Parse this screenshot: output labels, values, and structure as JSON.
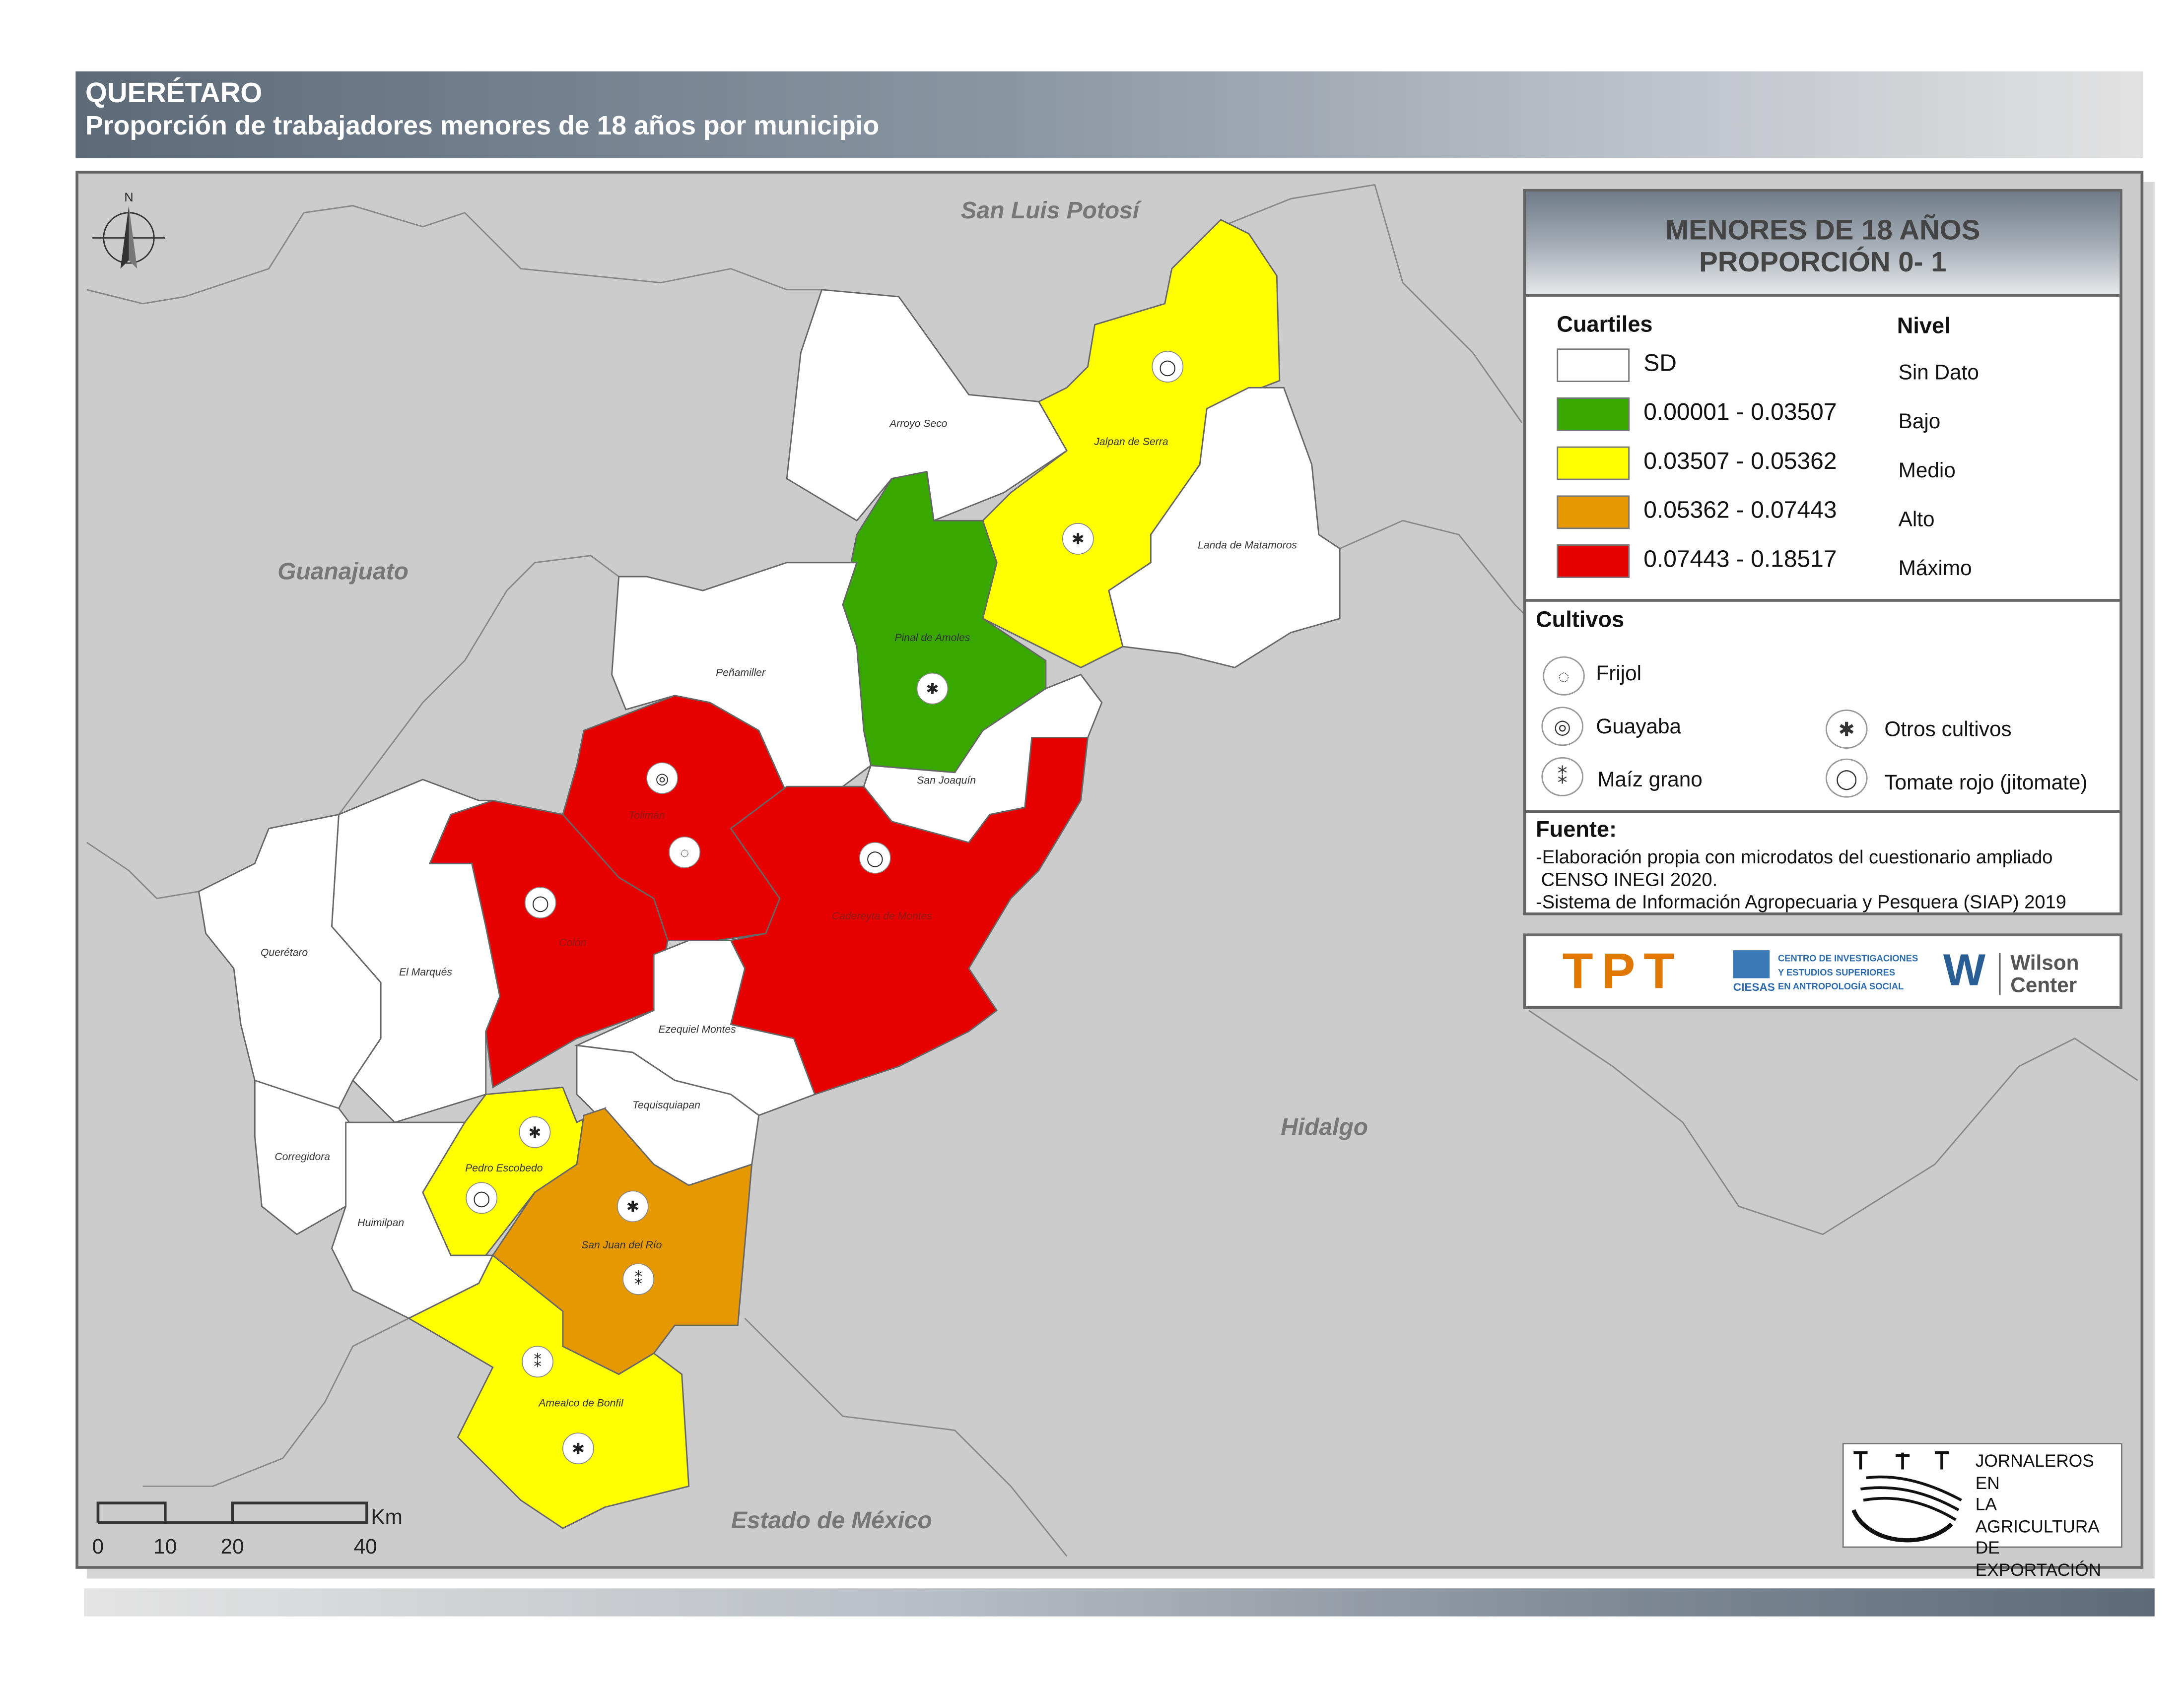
{
  "header": {
    "state": "QUERÉTARO",
    "subtitle": "Proporción de trabajadores menores de 18 años por municipio"
  },
  "colors": {
    "sin_dato": "#ffffff",
    "bajo": "#38a800",
    "medio": "#ffff00",
    "alto": "#e69800",
    "maximo": "#e60000",
    "background": "#cccccc"
  },
  "neighbors": [
    "San Luis Potosí",
    "Guanajuato",
    "Hidalgo",
    "Estado de México"
  ],
  "municipalities": [
    {
      "name": "Arroyo Seco",
      "level": "Sin Dato",
      "crops": []
    },
    {
      "name": "Jalpan de Serra",
      "level": "Medio",
      "crops": [
        "Tomate rojo (jitomate)",
        "Otros cultivos"
      ]
    },
    {
      "name": "Landa de Matamoros",
      "level": "Sin Dato",
      "crops": []
    },
    {
      "name": "Pinal de Amoles",
      "level": "Bajo",
      "crops": [
        "Otros cultivos"
      ]
    },
    {
      "name": "Peñamiller",
      "level": "Sin Dato",
      "crops": []
    },
    {
      "name": "San Joaquín",
      "level": "Sin Dato",
      "crops": []
    },
    {
      "name": "Tolimán",
      "level": "Máximo",
      "crops": [
        "Guayaba",
        "Frijol"
      ]
    },
    {
      "name": "Colón",
      "level": "Máximo",
      "crops": [
        "Tomate rojo (jitomate)"
      ]
    },
    {
      "name": "Cadereyta de Montes",
      "level": "Máximo",
      "crops": [
        "Tomate rojo (jitomate)"
      ]
    },
    {
      "name": "Ezequiel Montes",
      "level": "Sin Dato",
      "crops": []
    },
    {
      "name": "Querétaro",
      "level": "Sin Dato",
      "crops": []
    },
    {
      "name": "El Marqués",
      "level": "Sin Dato",
      "crops": []
    },
    {
      "name": "Tequisquiapan",
      "level": "Sin Dato",
      "crops": []
    },
    {
      "name": "Corregidora",
      "level": "Sin Dato",
      "crops": []
    },
    {
      "name": "Huimilpan",
      "level": "Sin Dato",
      "crops": []
    },
    {
      "name": "Pedro Escobedo",
      "level": "Medio",
      "crops": [
        "Otros cultivos",
        "Tomate rojo (jitomate)"
      ]
    },
    {
      "name": "San Juan del Río",
      "level": "Alto",
      "crops": [
        "Otros cultivos",
        "Maíz grano"
      ]
    },
    {
      "name": "Amealco de Bonfil",
      "level": "Medio",
      "crops": [
        "Maíz grano",
        "Otros cultivos"
      ]
    }
  ],
  "legend": {
    "title1": "MENORES DE 18 AÑOS",
    "title2": "PROPORCIÓN 0- 1",
    "cuartiles_label": "Cuartiles",
    "nivel_label": "Nivel",
    "classes": [
      {
        "range": "SD",
        "level": "Sin Dato",
        "color": "#ffffff"
      },
      {
        "range": "0.00001 - 0.03507",
        "level": "Bajo",
        "color": "#38a800"
      },
      {
        "range": "0.03507 - 0.05362",
        "level": "Medio",
        "color": "#ffff00"
      },
      {
        "range": "0.05362 - 0.07443",
        "level": "Alto",
        "color": "#e69800"
      },
      {
        "range": "0.07443 - 0.18517",
        "level": "Máximo",
        "color": "#e60000"
      }
    ],
    "cultivos_label": "Cultivos",
    "crops": [
      "Frijol",
      "Guayaba",
      "Maíz grano",
      "Otros cultivos",
      "Tomate rojo (jitomate)"
    ],
    "fuente_label": "Fuente:",
    "sources": [
      "-Elaboración propia con microdatos del cuestionario ampliado",
      " CENSO INEGI 2020.",
      "-Sistema de Información Agropecuaria y Pesquera (SIAP) 2019"
    ]
  },
  "logos": {
    "tpt": "TPT",
    "ciesas_lines": [
      "CENTRO DE INVESTIGACIONES",
      "Y ESTUDIOS SUPERIORES",
      "EN ANTROPOLOGÍA SOCIAL"
    ],
    "ciesas": "CIESAS",
    "wilson1": "Wilson",
    "wilson2": "Center",
    "jornaleros": [
      "JORNALEROS EN",
      "LA AGRICULTURA",
      "DE EXPORTACIÓN"
    ]
  },
  "north": "N",
  "scalebar": {
    "ticks": [
      "0",
      "10",
      "20",
      "40"
    ],
    "unit": "Km"
  }
}
